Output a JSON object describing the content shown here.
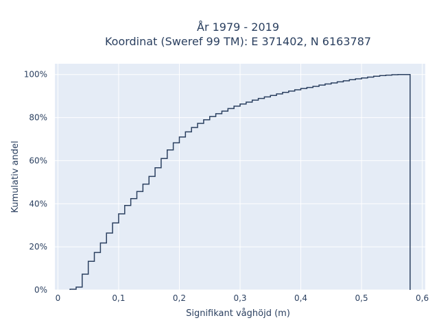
{
  "chart_data": {
    "type": "line",
    "subtype": "cumulative-step-histogram",
    "title_line1": "År 1979 - 2019",
    "title_line2": "Koordinat (Sweref 99 TM): E 371402, N 6163787",
    "xlabel": "Signifikant våghöjd (m)",
    "ylabel": "Kumulativ andel",
    "xlim": [
      -0.005,
      0.605
    ],
    "ylim": [
      0,
      1.05
    ],
    "grid": true,
    "background_color": "#e5ecf6",
    "line_color": "#2a3f5f",
    "xticks": [
      0,
      0.1,
      0.2,
      0.3,
      0.4,
      0.5,
      0.6
    ],
    "xtick_labels": [
      "0",
      "0,1",
      "0,2",
      "0,3",
      "0,4",
      "0,5",
      "0,6"
    ],
    "yticks": [
      0,
      0.2,
      0.4,
      0.6,
      0.8,
      1.0
    ],
    "ytick_labels": [
      "0%",
      "20%",
      "40%",
      "60%",
      "80%",
      "100%"
    ],
    "bin_width": 0.01,
    "x": [
      0.02,
      0.03,
      0.04,
      0.05,
      0.06,
      0.07,
      0.08,
      0.09,
      0.1,
      0.11,
      0.12,
      0.13,
      0.14,
      0.15,
      0.16,
      0.17,
      0.18,
      0.19,
      0.2,
      0.21,
      0.22,
      0.23,
      0.24,
      0.25,
      0.26,
      0.27,
      0.28,
      0.29,
      0.3,
      0.31,
      0.32,
      0.33,
      0.34,
      0.35,
      0.36,
      0.37,
      0.38,
      0.39,
      0.4,
      0.41,
      0.42,
      0.43,
      0.44,
      0.45,
      0.46,
      0.47,
      0.48,
      0.49,
      0.5,
      0.51,
      0.52,
      0.53,
      0.54,
      0.55,
      0.56,
      0.57
    ],
    "y": [
      0.003,
      0.013,
      0.073,
      0.133,
      0.174,
      0.218,
      0.264,
      0.311,
      0.353,
      0.392,
      0.424,
      0.457,
      0.491,
      0.527,
      0.567,
      0.61,
      0.65,
      0.683,
      0.71,
      0.734,
      0.754,
      0.773,
      0.79,
      0.805,
      0.818,
      0.83,
      0.842,
      0.853,
      0.863,
      0.872,
      0.881,
      0.889,
      0.896,
      0.903,
      0.91,
      0.917,
      0.923,
      0.929,
      0.935,
      0.94,
      0.945,
      0.951,
      0.956,
      0.961,
      0.966,
      0.971,
      0.976,
      0.98,
      0.984,
      0.988,
      0.992,
      0.995,
      0.997,
      0.999,
      1.0,
      1.0
    ]
  }
}
